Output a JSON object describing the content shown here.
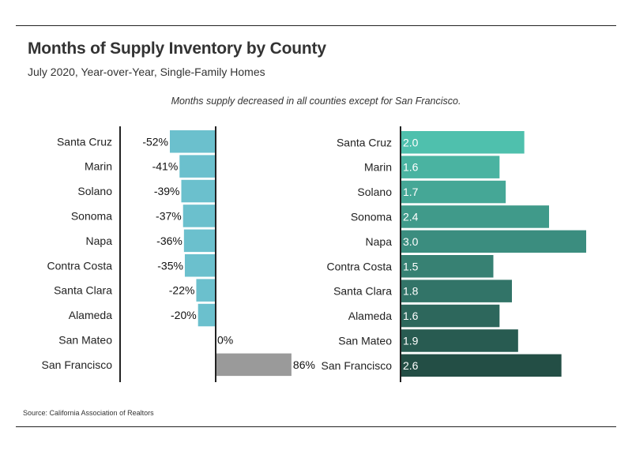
{
  "title": "Months of Supply Inventory by County",
  "subtitle": "July 2020, Year-over-Year, Single-Family Homes",
  "annotation": "Months supply decreased in all counties except for San Francisco.",
  "source": "Source:  California Association of Realtors",
  "colors": {
    "left_bar": "#6bc0cd",
    "left_bar_positive": "#9a9a9a",
    "right_gradient_start": "#4fc0ad",
    "right_gradient_end": "#234e45",
    "axis": "#222222"
  },
  "chart_data": [
    {
      "type": "bar",
      "orientation": "horizontal",
      "title": "",
      "categories": [
        "Santa Cruz",
        "Marin",
        "Solano",
        "Sonoma",
        "Napa",
        "Contra Costa",
        "Santa Clara",
        "Alameda",
        "San Mateo",
        "San Francisco"
      ],
      "values": [
        -52,
        -41,
        -39,
        -37,
        -36,
        -35,
        -22,
        -20,
        0,
        86
      ],
      "value_labels": [
        "-52%",
        "-41%",
        "-39%",
        "-37%",
        "-36%",
        "-35%",
        "-22%",
        "-20%",
        "0%",
        "86%"
      ],
      "xlim": [
        -52,
        86
      ],
      "grid": false,
      "legend": "none"
    },
    {
      "type": "bar",
      "orientation": "horizontal",
      "title": "",
      "categories": [
        "Santa Cruz",
        "Marin",
        "Solano",
        "Sonoma",
        "Napa",
        "Contra Costa",
        "Santa Clara",
        "Alameda",
        "San Mateo",
        "San Francisco"
      ],
      "values": [
        2.0,
        1.6,
        1.7,
        2.4,
        3.0,
        1.5,
        1.8,
        1.6,
        1.9,
        2.6
      ],
      "value_labels": [
        "2.0",
        "1.6",
        "1.7",
        "2.4",
        "3.0",
        "1.5",
        "1.8",
        "1.6",
        "1.9",
        "2.6"
      ],
      "xlim": [
        0,
        3.0
      ],
      "grid": false,
      "legend": "none"
    }
  ]
}
